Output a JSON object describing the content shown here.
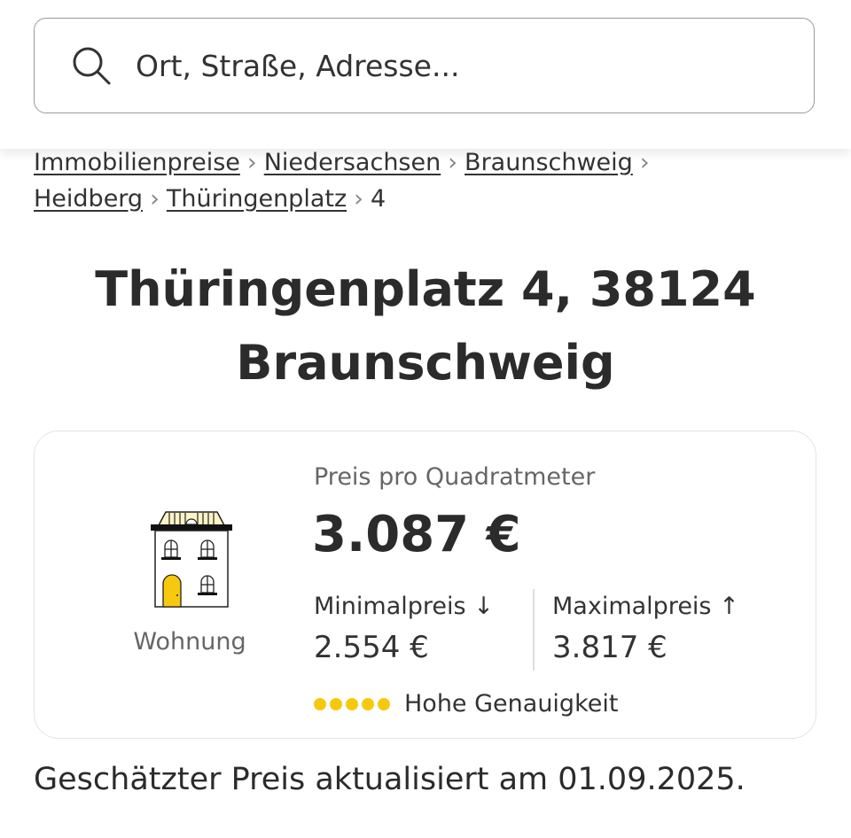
{
  "search": {
    "placeholder": "Ort, Straße, Adresse...",
    "icon": "search-icon"
  },
  "breadcrumb": {
    "items": [
      "Immobilienpreise",
      "Niedersachsen",
      "Braunschweig",
      "Heidberg",
      "Thüringenplatz"
    ],
    "current": "4",
    "separator": ">"
  },
  "title": {
    "line1": "Thüringenplatz 4, 38124",
    "line2": "Braunschweig"
  },
  "card": {
    "property_type": "Wohnung",
    "price_label": "Preis pro Quadratmeter",
    "price": "3.087 €",
    "min_label": "Minimalpreis",
    "min_value": "2.554 €",
    "max_label": "Maximalpreis",
    "max_value": "3.817 €",
    "accuracy_label": "Hohe Genauigkeit",
    "accuracy_level": 5,
    "accuracy_max": 5,
    "accent": "#f6c90e"
  },
  "footer": {
    "text": "Geschätzter Preis aktualisiert am 01.09.2025."
  }
}
